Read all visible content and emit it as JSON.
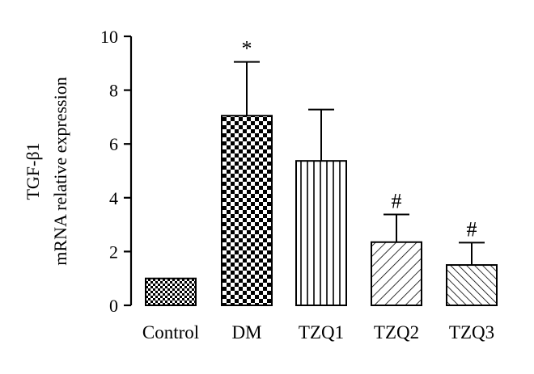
{
  "chart_data": {
    "type": "bar",
    "categories": [
      "Control",
      "DM",
      "TZQ1",
      "TZQ2",
      "TZQ3"
    ],
    "values": [
      1.0,
      7.05,
      5.37,
      2.35,
      1.5
    ],
    "error_upper": [
      1.0,
      9.05,
      7.28,
      3.38,
      2.33
    ],
    "annotations": [
      "",
      "*",
      "",
      "#",
      "#"
    ],
    "patterns": [
      "fine-checker",
      "checker",
      "vertical-lines",
      "diagonal-lines",
      "diagonal-lines-reverse"
    ],
    "ylabel_line1": "TGF-β1",
    "ylabel_line2": "mRNA relative expression",
    "ylim": [
      0,
      10
    ],
    "yticks": [
      "0",
      "2",
      "4",
      "6",
      "8",
      "10"
    ],
    "grid": false,
    "bar_color": "#000000",
    "background": "#ffffff"
  }
}
